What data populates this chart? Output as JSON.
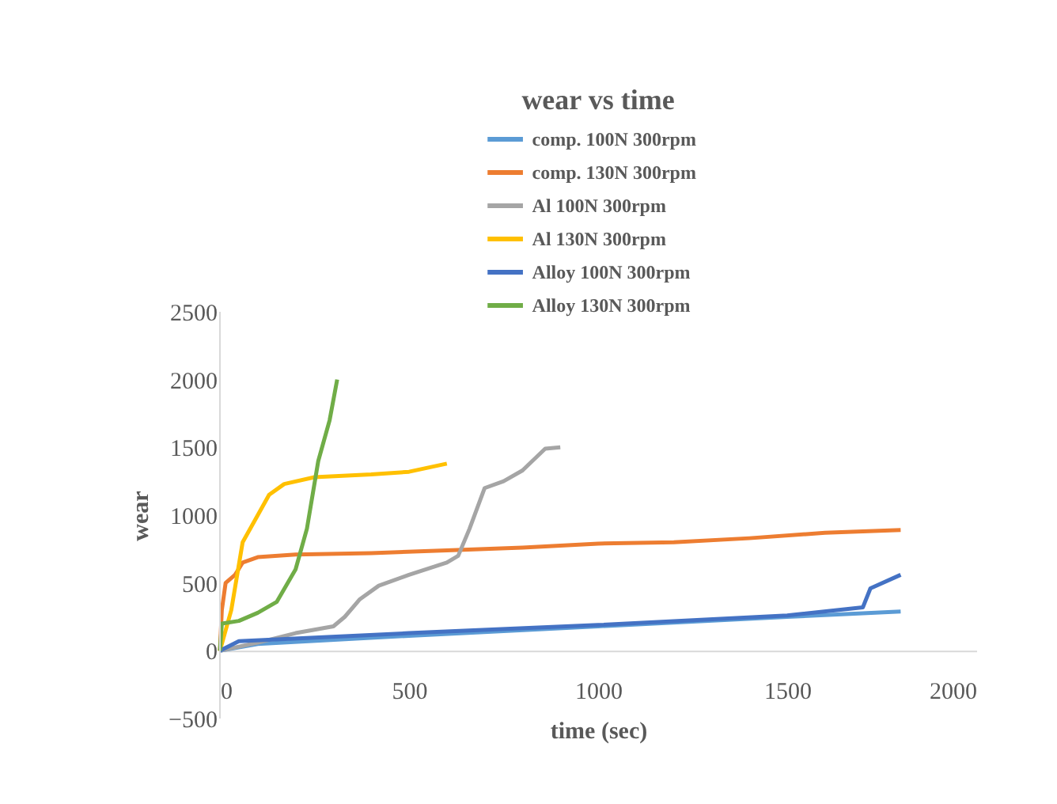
{
  "chart_data": {
    "type": "line",
    "title": "wear vs time",
    "xlabel": "time (sec)",
    "ylabel": "wear",
    "xlim": [
      0,
      2000
    ],
    "xticks": [
      0,
      500,
      1000,
      1500,
      2000
    ],
    "ylim": [
      -500,
      2500
    ],
    "yticks": [
      -500,
      0,
      500,
      1000,
      1500,
      2000,
      2500
    ],
    "grid": false,
    "legend": "top",
    "marker": "none",
    "line_style": "solid",
    "series": [
      {
        "name": "comp. 100N 300rpm",
        "color": "#5b9bd5",
        "x": [
          0,
          100,
          500,
          1000,
          1500,
          1800
        ],
        "values": [
          0,
          50,
          110,
          180,
          250,
          290
        ]
      },
      {
        "name": "comp. 130N 300rpm",
        "color": "#ed7d31",
        "x": [
          0,
          5,
          15,
          40,
          60,
          100,
          200,
          400,
          600,
          800,
          1000,
          1200,
          1400,
          1600,
          1800
        ],
        "values": [
          0,
          300,
          500,
          560,
          650,
          690,
          710,
          720,
          740,
          760,
          790,
          800,
          830,
          870,
          890
        ]
      },
      {
        "name": "Al 100N 300rpm",
        "color": "#a5a5a5",
        "x": [
          0,
          100,
          200,
          300,
          330,
          370,
          420,
          500,
          600,
          630,
          660,
          700,
          750,
          800,
          860,
          900
        ],
        "values": [
          0,
          60,
          130,
          180,
          250,
          380,
          480,
          560,
          650,
          700,
          900,
          1200,
          1250,
          1330,
          1490,
          1500
        ]
      },
      {
        "name": "Al 130N 300rpm",
        "color": "#ffc000",
        "x": [
          0,
          30,
          60,
          100,
          130,
          170,
          250,
          400,
          500,
          600
        ],
        "values": [
          0,
          300,
          800,
          1000,
          1150,
          1230,
          1280,
          1300,
          1320,
          1380
        ]
      },
      {
        "name": "Alloy 100N 300rpm",
        "color": "#4472c4",
        "x": [
          0,
          50,
          500,
          1000,
          1500,
          1700,
          1720,
          1800
        ],
        "values": [
          0,
          70,
          130,
          190,
          260,
          320,
          460,
          560
        ]
      },
      {
        "name": "Alloy 130N 300rpm",
        "color": "#70ad47",
        "x": [
          0,
          5,
          50,
          100,
          150,
          200,
          230,
          260,
          290,
          310
        ],
        "values": [
          0,
          200,
          220,
          280,
          360,
          600,
          900,
          1400,
          1700,
          2000
        ]
      }
    ]
  }
}
